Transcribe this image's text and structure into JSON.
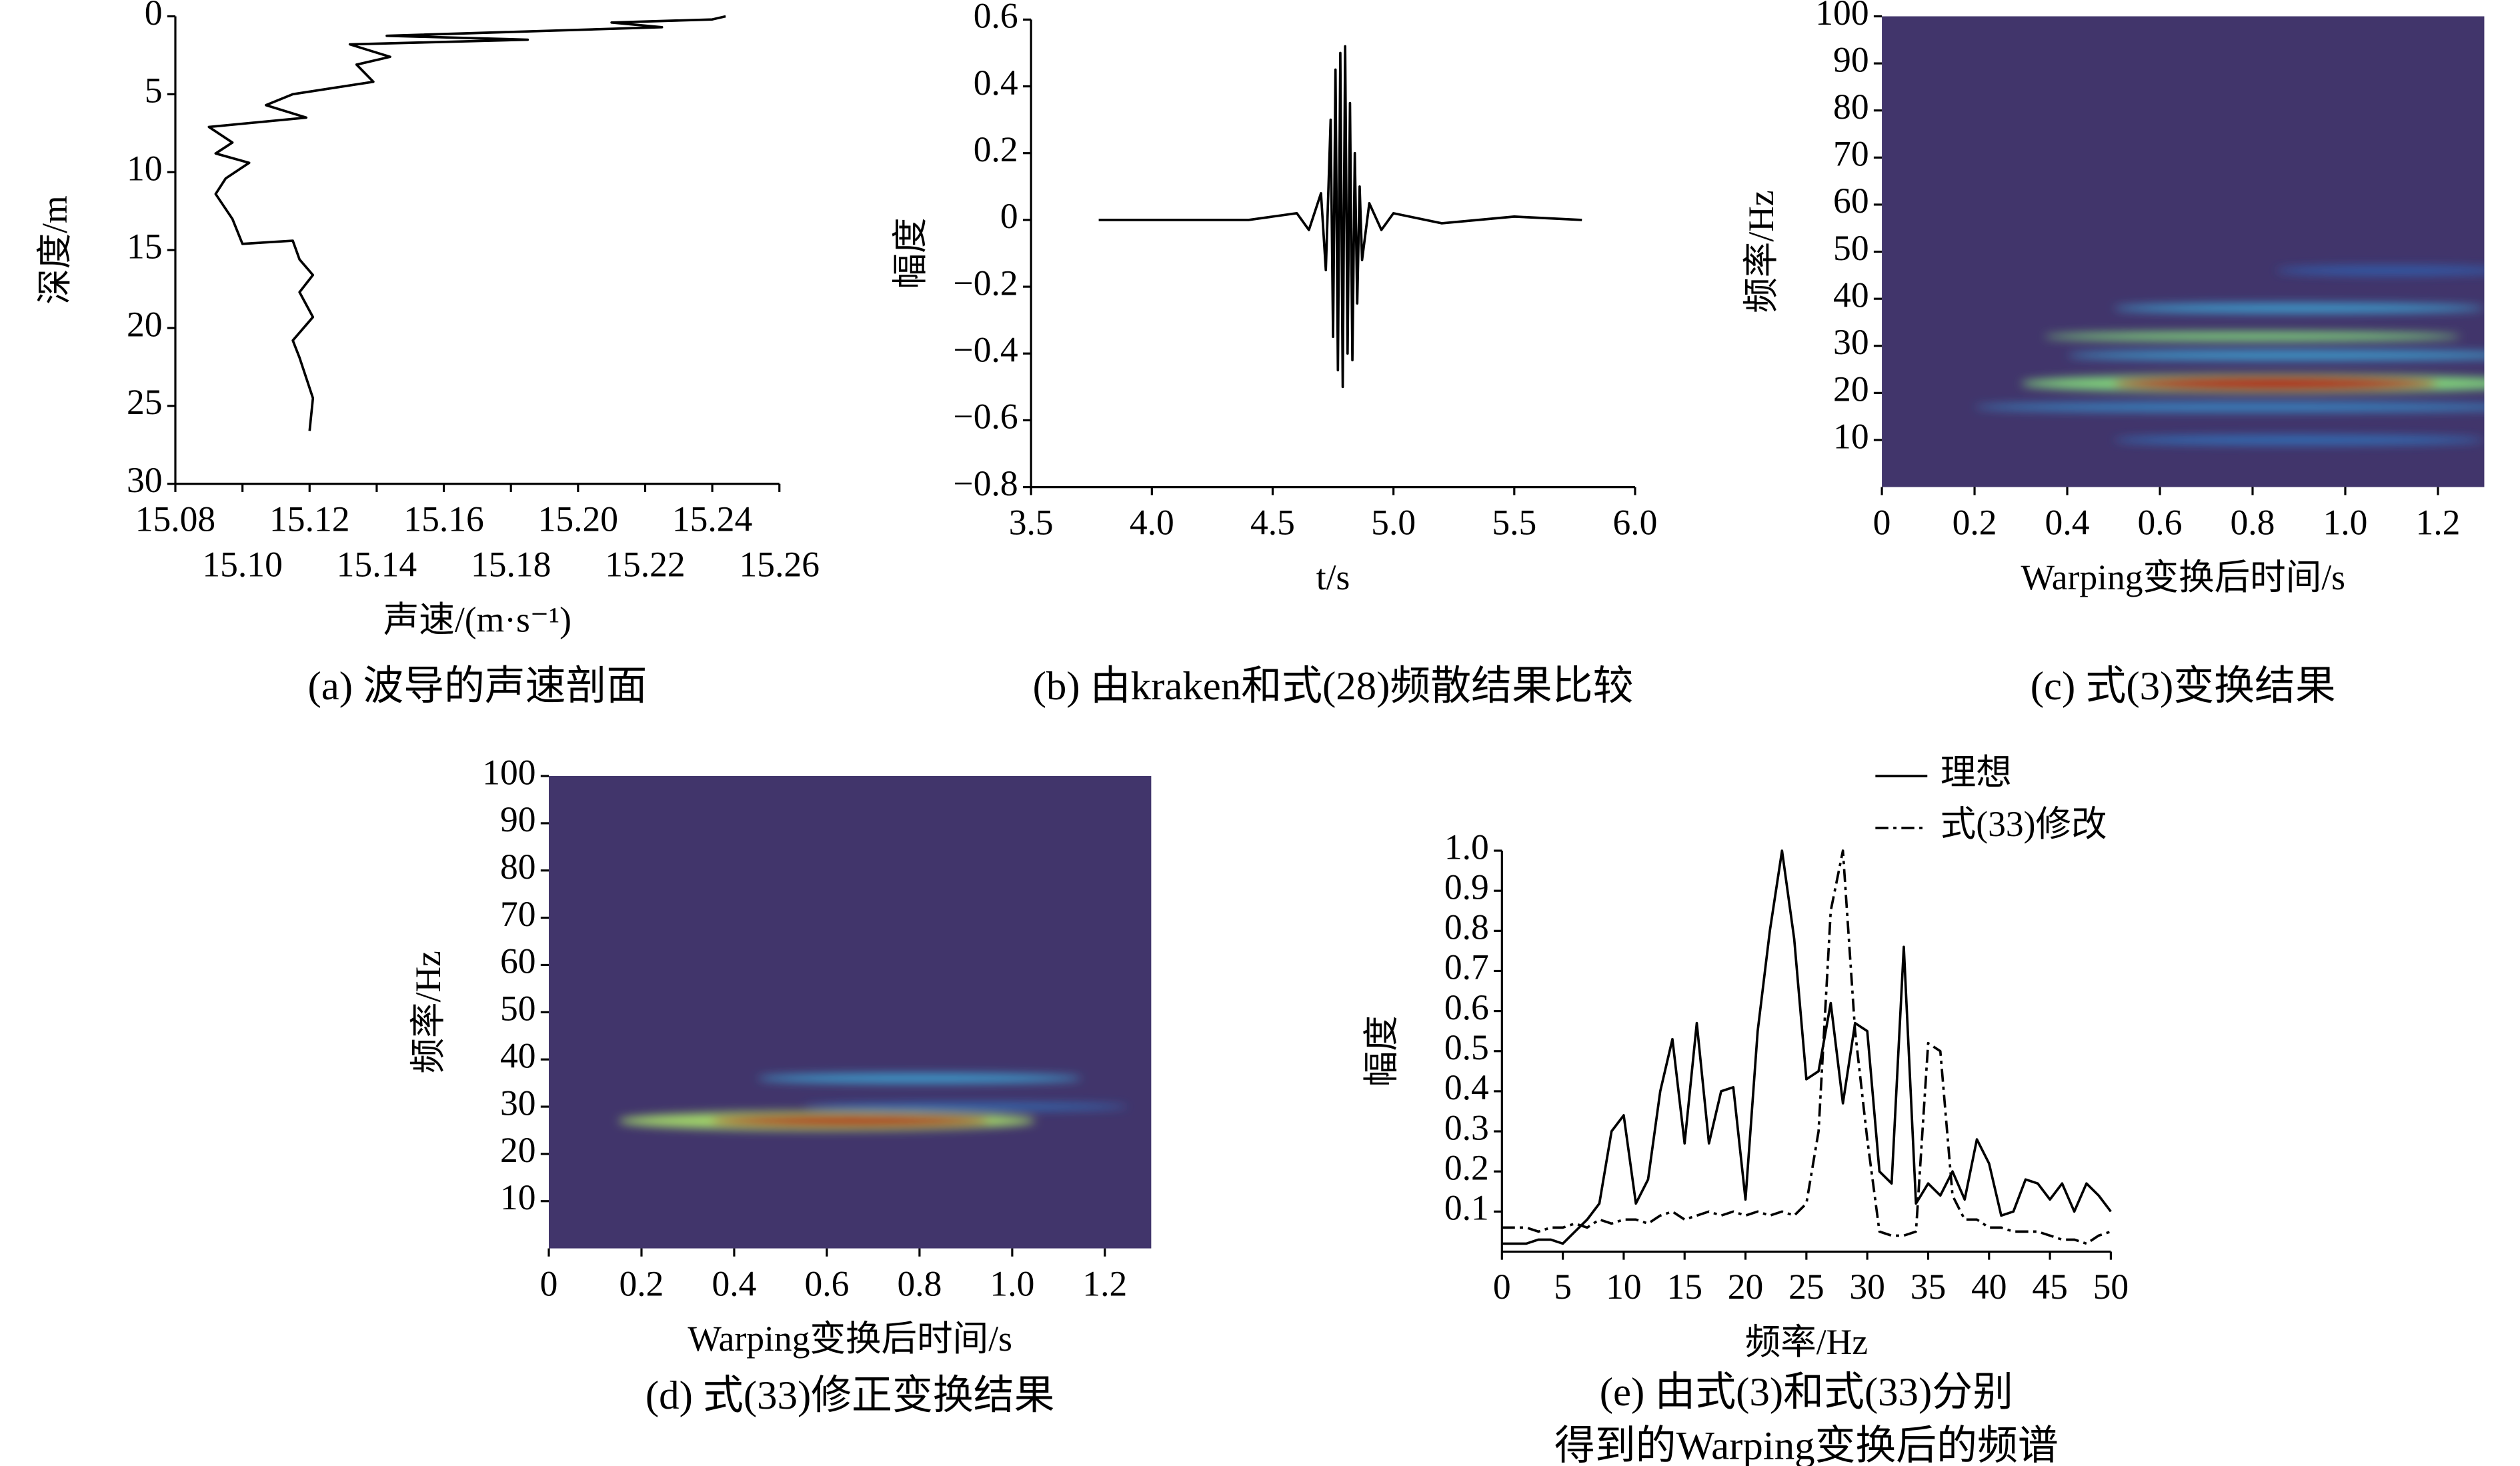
{
  "chart_data": [
    {
      "type": "line",
      "caption": [
        "(a) 波导的声速剖面"
      ],
      "x_label": "声速/(m·s⁻¹)",
      "y_label": "深度/m",
      "x": [
        15.244,
        15.24,
        15.21,
        15.225,
        15.143,
        15.185,
        15.132,
        15.144,
        15.134,
        15.139,
        15.115,
        15.107,
        15.119,
        15.09,
        15.097,
        15.092,
        15.102,
        15.095,
        15.092,
        15.097,
        15.1,
        15.115,
        15.117,
        15.121,
        15.117,
        15.121,
        15.115,
        15.117,
        15.121,
        15.12
      ],
      "values": [
        0,
        0.2,
        0.4,
        0.7,
        1.25,
        1.5,
        1.8,
        2.6,
        3.1,
        4.2,
        5.0,
        5.7,
        6.5,
        7.1,
        8.1,
        8.8,
        9.4,
        10.4,
        11.4,
        13.0,
        14.6,
        14.4,
        15.6,
        16.6,
        17.7,
        19.3,
        20.8,
        21.9,
        24.5,
        26.6
      ],
      "color": "#000000",
      "xlim": [
        15.08,
        15.26
      ],
      "xticks": [
        15.08,
        {
          "value": 15.1,
          "label": "15.10"
        },
        15.12,
        15.14,
        15.16,
        15.18,
        {
          "value": 15.2,
          "label": "15.20"
        },
        15.22,
        15.24,
        15.26
      ],
      "xtick_label_rows": 2,
      "ylim": [
        30,
        0
      ],
      "yticks": [
        0,
        5,
        10,
        15,
        20,
        25,
        30
      ]
    },
    {
      "type": "line",
      "caption": [
        "(b) 由kraken和式(28)频散结果比较"
      ],
      "x_label": "t/s",
      "y_label": "幅度",
      "x": [
        3.78,
        4.4,
        4.5,
        4.6,
        4.65,
        4.7,
        4.72,
        4.74,
        4.75,
        4.76,
        4.77,
        4.78,
        4.79,
        4.8,
        4.81,
        4.82,
        4.83,
        4.84,
        4.85,
        4.86,
        4.87,
        4.9,
        4.95,
        5.0,
        5.2,
        5.5,
        5.78
      ],
      "values": [
        0,
        0,
        0.01,
        0.02,
        -0.03,
        0.08,
        -0.15,
        0.3,
        -0.35,
        0.45,
        -0.45,
        0.5,
        -0.5,
        0.52,
        -0.4,
        0.35,
        -0.42,
        0.2,
        -0.25,
        0.1,
        -0.12,
        0.05,
        -0.03,
        0.02,
        -0.01,
        0.01,
        0
      ],
      "color": "#000000",
      "xlim": [
        3.5,
        6.0
      ],
      "xticks": [
        3.5,
        {
          "value": 4,
          "label": "4.0"
        },
        4.5,
        {
          "value": 5,
          "label": "5.0"
        },
        5.5,
        {
          "value": 6,
          "label": "6.0"
        }
      ],
      "ylim": [
        -0.8,
        0.6
      ],
      "yticks": [
        {
          "value": -0.8,
          "label": "−0.8"
        },
        {
          "value": -0.6,
          "label": "−0.6"
        },
        {
          "value": -0.4,
          "label": "−0.4"
        },
        {
          "value": -0.2,
          "label": "−0.2"
        },
        0,
        0.2,
        0.4,
        0.6
      ]
    },
    {
      "type": "heatmap",
      "caption": [
        "(c) 式(3)变换结果"
      ],
      "x_label": "Warping变换后时间/s",
      "y_label": "频率/Hz",
      "colormap": [
        "#41356b",
        "#2f5fb0",
        "#3fb0d8",
        "#7fd07a",
        "#f0e040",
        "#e0401e",
        "#b01010"
      ],
      "blobs": [
        {
          "x": 1.1,
          "y": 46,
          "width": 0.5,
          "height": 2,
          "value": 0.15
        },
        {
          "x": 0.9,
          "y": 10,
          "width": 0.8,
          "height": 2,
          "value": 0.2
        },
        {
          "x": 0.8,
          "y": 17,
          "width": 1.2,
          "height": 2,
          "value": 0.25
        },
        {
          "x": 0.9,
          "y": 28,
          "width": 1.0,
          "height": 2,
          "value": 0.3
        },
        {
          "x": 0.9,
          "y": 38,
          "width": 0.8,
          "height": 2,
          "value": 0.3
        },
        {
          "x": 0.8,
          "y": 32,
          "width": 0.9,
          "height": 2,
          "value": 0.5
        },
        {
          "x": 0.85,
          "y": 22,
          "width": 1.1,
          "height": 4,
          "value": 0.5
        },
        {
          "x": 0.85,
          "y": 22,
          "width": 0.7,
          "height": 3,
          "value": 1.0
        }
      ],
      "xlim": [
        0,
        1.3
      ],
      "xticks": [
        0,
        0.2,
        0.4,
        0.6,
        0.8,
        {
          "value": 1,
          "label": "1.0"
        },
        1.2
      ],
      "ylim": [
        0,
        100
      ],
      "yticks": [
        10,
        20,
        30,
        40,
        50,
        60,
        70,
        80,
        90,
        100
      ]
    },
    {
      "type": "heatmap",
      "caption": [
        "(d) 式(33)修正变换结果"
      ],
      "x_label": "Warping变换后时间/s",
      "y_label": "频率/Hz",
      "colormap": [
        "#41356b",
        "#2f5fb0",
        "#3fb0d8",
        "#7fd07a",
        "#f0e040",
        "#e0401e",
        "#b01010"
      ],
      "blobs": [
        {
          "x": 0.9,
          "y": 30,
          "width": 0.7,
          "height": 1.5,
          "value": 0.2
        },
        {
          "x": 0.8,
          "y": 36,
          "width": 0.7,
          "height": 2,
          "value": 0.3
        },
        {
          "x": 0.6,
          "y": 27,
          "width": 0.9,
          "height": 4,
          "value": 0.55
        },
        {
          "x": 0.65,
          "y": 27,
          "width": 0.6,
          "height": 2.5,
          "value": 1.0
        }
      ],
      "xlim": [
        0,
        1.3
      ],
      "xticks": [
        0,
        0.2,
        0.4,
        0.6,
        0.8,
        {
          "value": 1,
          "label": "1.0"
        },
        1.2
      ],
      "ylim": [
        0,
        100
      ],
      "yticks": [
        10,
        20,
        30,
        40,
        50,
        60,
        70,
        80,
        90,
        100
      ]
    },
    {
      "type": "line",
      "caption": [
        "(e) 由式(3)和式(33)分别",
        "得到的Warping变换后的频谱"
      ],
      "x_label": "频率/Hz",
      "y_label": "幅度",
      "legend": "top-right",
      "x": [
        0,
        1,
        2,
        3,
        4,
        5,
        6,
        7,
        8,
        9,
        10,
        11,
        12,
        13,
        14,
        15,
        16,
        17,
        18,
        19,
        20,
        21,
        22,
        23,
        24,
        25,
        26,
        27,
        28,
        29,
        30,
        31,
        32,
        33,
        34,
        35,
        36,
        37,
        38,
        39,
        40,
        41,
        42,
        43,
        44,
        45,
        46,
        47,
        48,
        49,
        50
      ],
      "series": [
        {
          "name": "理想",
          "color": "#000000",
          "style": "solid",
          "values": [
            0.02,
            0.02,
            0.02,
            0.03,
            0.03,
            0.02,
            0.05,
            0.08,
            0.12,
            0.3,
            0.34,
            0.12,
            0.18,
            0.4,
            0.53,
            0.27,
            0.57,
            0.27,
            0.4,
            0.41,
            0.13,
            0.55,
            0.8,
            1.0,
            0.78,
            0.43,
            0.45,
            0.62,
            0.37,
            0.57,
            0.55,
            0.2,
            0.17,
            0.76,
            0.12,
            0.17,
            0.14,
            0.2,
            0.13,
            0.28,
            0.22,
            0.09,
            0.1,
            0.18,
            0.17,
            0.13,
            0.17,
            0.1,
            0.17,
            0.14,
            0.1
          ]
        },
        {
          "name": "式(33)修改",
          "color": "#000000",
          "style": "dash-dot",
          "values": [
            0.06,
            0.06,
            0.06,
            0.05,
            0.06,
            0.06,
            0.07,
            0.06,
            0.08,
            0.07,
            0.08,
            0.08,
            0.07,
            0.09,
            0.1,
            0.08,
            0.09,
            0.1,
            0.09,
            0.1,
            0.09,
            0.1,
            0.09,
            0.1,
            0.09,
            0.12,
            0.3,
            0.85,
            1.0,
            0.55,
            0.28,
            0.05,
            0.04,
            0.04,
            0.05,
            0.52,
            0.5,
            0.14,
            0.08,
            0.08,
            0.06,
            0.06,
            0.05,
            0.05,
            0.05,
            0.04,
            0.03,
            0.03,
            0.02,
            0.04,
            0.05
          ]
        }
      ],
      "xlim": [
        0,
        50
      ],
      "xticks": [
        0,
        5,
        10,
        15,
        20,
        25,
        30,
        35,
        40,
        45,
        50
      ],
      "ylim": [
        0,
        1
      ],
      "yticks": [
        0.1,
        0.2,
        0.3,
        0.4,
        0.5,
        0.6,
        0.7,
        0.8,
        0.9,
        {
          "value": 1,
          "label": "1.0"
        }
      ]
    }
  ]
}
